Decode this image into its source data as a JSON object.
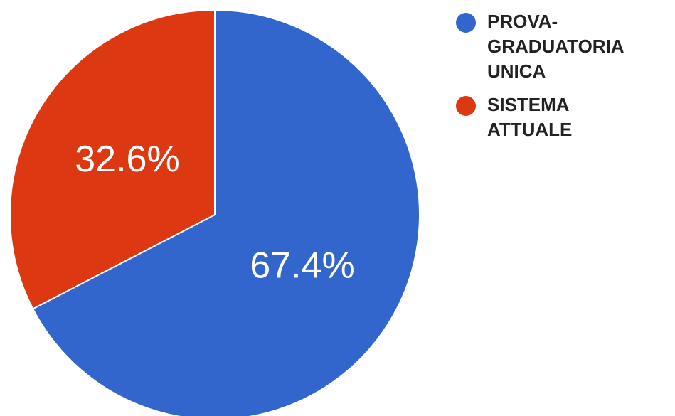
{
  "chart_data": {
    "type": "pie",
    "slices": [
      {
        "name": "PROVA-GRADUATORIA UNICA",
        "legend_lines": [
          "PROVA-",
          "GRADUATORIA",
          "UNICA"
        ],
        "value": 67.4,
        "label": "67.4%",
        "color": "#3366cc"
      },
      {
        "name": "SISTEMA ATTUALE",
        "legend_lines": [
          "SISTEMA",
          "ATTUALE"
        ],
        "value": 32.6,
        "label": "32.6%",
        "color": "#dc3912"
      }
    ],
    "legend_position": "right",
    "start_angle": "top",
    "direction": "clockwise"
  }
}
